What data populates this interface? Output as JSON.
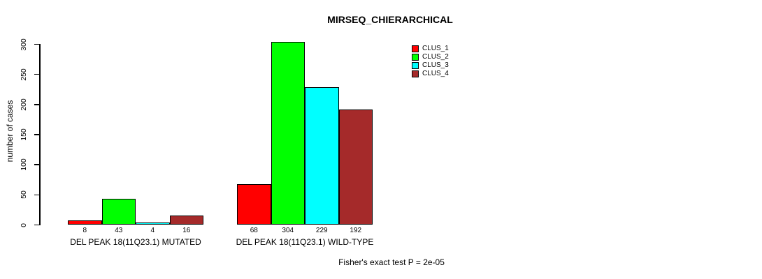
{
  "chart_data": {
    "type": "bar",
    "title": "MIRSEQ_CHIERARCHICAL",
    "xlabel": "",
    "ylabel": "number of cases",
    "ylim": [
      0,
      300
    ],
    "yticks": [
      0,
      50,
      100,
      150,
      200,
      250,
      300
    ],
    "grid": false,
    "background_color": "#ffffff",
    "categories": [
      "DEL PEAK 18(11Q23.1) MUTATED",
      "DEL PEAK 18(11Q23.1) WILD-TYPE"
    ],
    "series": [
      {
        "name": "CLUS_1",
        "color": "#ff0000",
        "values": [
          8,
          68
        ]
      },
      {
        "name": "CLUS_2",
        "color": "#00ff00",
        "values": [
          43,
          304
        ]
      },
      {
        "name": "CLUS_3",
        "color": "#00ffff",
        "values": [
          4,
          229
        ]
      },
      {
        "name": "CLUS_4",
        "color": "#a52a2a",
        "values": [
          16,
          192
        ]
      }
    ],
    "bar_value_labels": [
      8,
      43,
      4,
      16,
      68,
      304,
      229,
      192
    ],
    "legend": {
      "position": "top-right",
      "entries": [
        "CLUS_1",
        "CLUS_2",
        "CLUS_3",
        "CLUS_4"
      ]
    },
    "annotation": "Fisher's exact test P = 2e-05"
  }
}
